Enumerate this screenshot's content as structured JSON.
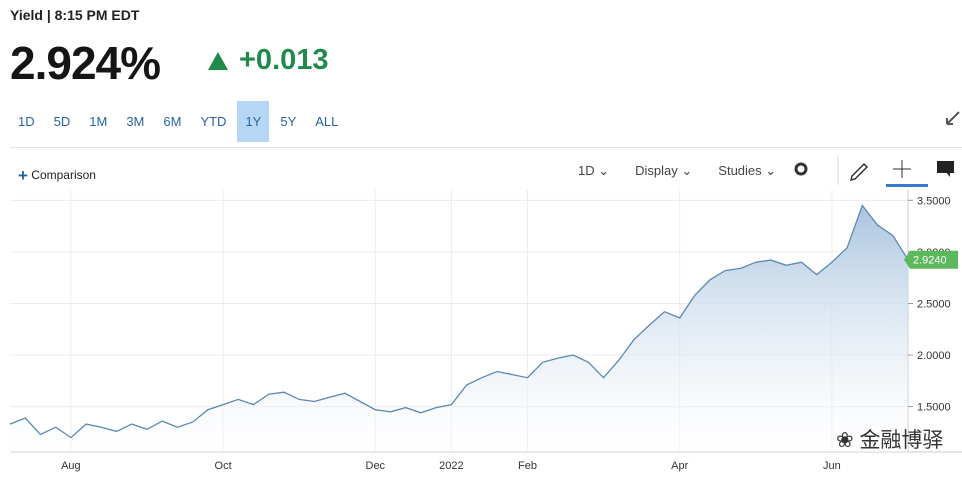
{
  "header": {
    "title": "Yield | 8:15 PM EDT",
    "price": "2.924%",
    "change": "+0.013"
  },
  "range_buttons": [
    {
      "label": "1D"
    },
    {
      "label": "5D"
    },
    {
      "label": "1M"
    },
    {
      "label": "3M"
    },
    {
      "label": "6M"
    },
    {
      "label": "YTD"
    },
    {
      "label": "1Y",
      "active": true
    },
    {
      "label": "5Y"
    },
    {
      "label": "ALL"
    }
  ],
  "toolbar": {
    "comparison": "Comparison",
    "interval": "1D",
    "menus": [
      "Display",
      "Studies"
    ]
  },
  "watermark": "金融博驿",
  "chart_data": {
    "type": "area",
    "color": "#5b88b5",
    "categories": [
      null,
      null,
      null,
      null,
      "Aug",
      null,
      null,
      null,
      null,
      null,
      null,
      null,
      null,
      null,
      "Oct",
      null,
      null,
      null,
      null,
      null,
      null,
      null,
      null,
      null,
      "Dec",
      null,
      null,
      null,
      null,
      "2022",
      null,
      null,
      null,
      null,
      "Feb",
      null,
      null,
      null,
      null,
      null,
      null,
      null,
      null,
      null,
      "Apr",
      null,
      null,
      null,
      null,
      null,
      null,
      null,
      null,
      null,
      "Jun",
      null,
      null,
      null,
      null,
      null
    ],
    "values": [
      1.33,
      1.39,
      1.23,
      1.3,
      1.2,
      1.33,
      1.3,
      1.26,
      1.33,
      1.28,
      1.36,
      1.3,
      1.35,
      1.47,
      1.52,
      1.57,
      1.52,
      1.62,
      1.64,
      1.57,
      1.55,
      1.59,
      1.63,
      1.55,
      1.47,
      1.45,
      1.49,
      1.44,
      1.49,
      1.52,
      1.71,
      1.78,
      1.84,
      1.81,
      1.78,
      1.93,
      1.97,
      2.0,
      1.93,
      1.78,
      1.95,
      2.15,
      2.29,
      2.42,
      2.36,
      2.58,
      2.73,
      2.82,
      2.84,
      2.9,
      2.92,
      2.87,
      2.9,
      2.78,
      2.9,
      3.04,
      3.45,
      3.26,
      3.16,
      2.924
    ],
    "value_labels": [
      null,
      null,
      null,
      null,
      null,
      null,
      null,
      null,
      null,
      null,
      null,
      null,
      null,
      null,
      null,
      null,
      null,
      null,
      null,
      null,
      null,
      null,
      null,
      null,
      null,
      null,
      null,
      null,
      null,
      null,
      null,
      null,
      null,
      null,
      null,
      null,
      null,
      null,
      null,
      null,
      null,
      null,
      null,
      null,
      null,
      null,
      null,
      null,
      null,
      null,
      null,
      null,
      null,
      null,
      null,
      null,
      null,
      null,
      null,
      "2.9240"
    ],
    "ylim": [
      1.06,
      3.6
    ],
    "yticks": [
      {
        "value": 1.5,
        "label": "1.5000"
      },
      {
        "value": 2,
        "label": "2.0000"
      },
      {
        "value": 2.5,
        "label": "2.5000"
      },
      {
        "value": 3,
        "label": "3.0000"
      },
      {
        "value": 3.5,
        "label": "3.5000"
      }
    ],
    "grid": true
  }
}
